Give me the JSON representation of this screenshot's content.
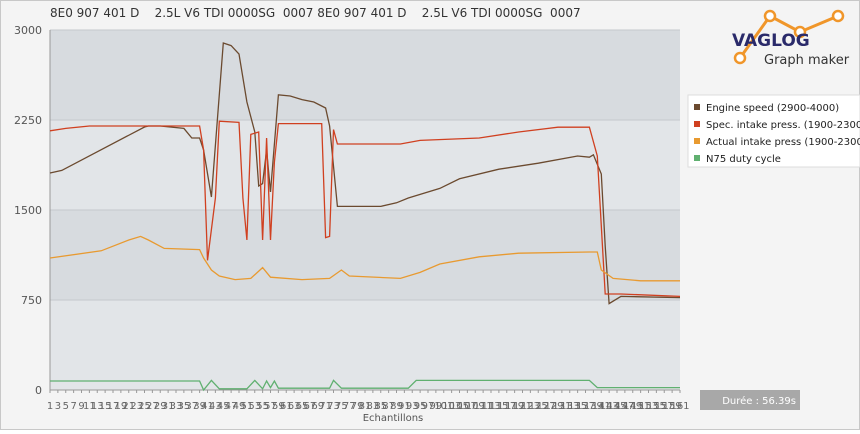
{
  "header": "8E0 907 401 D    2.5L V6 TDI 0000SG  0007 8E0 907 401 D    2.5L V6 TDI 0000SG  0007",
  "logo": {
    "title": "VAGLOG",
    "subtitle": "Graph maker"
  },
  "duration": "Durée : 56.39s",
  "chart_data": {
    "type": "line",
    "xlabel": "Echantillons",
    "xlim": [
      1,
      161
    ],
    "ylim": [
      0,
      3000
    ],
    "yticks": [
      0,
      750,
      1500,
      2250,
      3000
    ],
    "xticks": [
      1,
      3,
      5,
      7,
      9,
      11,
      13,
      15,
      17,
      19,
      21,
      23,
      25,
      27,
      29,
      31,
      33,
      35,
      37,
      39,
      41,
      43,
      45,
      47,
      49,
      51,
      53,
      55,
      57,
      59,
      61,
      63,
      65,
      67,
      69,
      71,
      73,
      75,
      77,
      79,
      81,
      83,
      85,
      87,
      89,
      91,
      93,
      95,
      97,
      99,
      101,
      103,
      105,
      107,
      109,
      111,
      113,
      115,
      117,
      119,
      121,
      123,
      125,
      127,
      129,
      131,
      133,
      135,
      137,
      139,
      141,
      143,
      145,
      147,
      149,
      151,
      153,
      155,
      157,
      159,
      161
    ],
    "legend": "right",
    "series": [
      {
        "name": "Engine speed (2900-4000)",
        "color": "#6b4a2f",
        "x": [
          1,
          4,
          25,
          26,
          29,
          35,
          37,
          39,
          40,
          42,
          45,
          47,
          49,
          51,
          53,
          54,
          55,
          56,
          57,
          59,
          62,
          65,
          68,
          71,
          72,
          74,
          85,
          89,
          92,
          100,
          105,
          115,
          125,
          135,
          138,
          139,
          141,
          142,
          143,
          146,
          161
        ],
        "values": [
          1808,
          1830,
          2192,
          2200,
          2200,
          2180,
          2100,
          2100,
          2000,
          1608,
          2892,
          2870,
          2800,
          2400,
          2150,
          1700,
          1720,
          2000,
          1650,
          2460,
          2450,
          2420,
          2400,
          2350,
          2200,
          1530,
          1530,
          1560,
          1600,
          1680,
          1760,
          1840,
          1890,
          1950,
          1940,
          1960,
          1800,
          1200,
          720,
          780,
          770
        ]
      },
      {
        "name": "Spec. intake press. (1900-2300",
        "color": "#d04020",
        "x": [
          1,
          5,
          11,
          39,
          40,
          41,
          43,
          44,
          49,
          50,
          51,
          52,
          54,
          55,
          56,
          57,
          58,
          59,
          70,
          71,
          72,
          73,
          74,
          90,
          95,
          110,
          120,
          130,
          138,
          140,
          142,
          146,
          161
        ],
        "values": [
          2160,
          2180,
          2200,
          2200,
          2000,
          1080,
          1600,
          2240,
          2230,
          1600,
          1250,
          2130,
          2150,
          1250,
          2100,
          1250,
          1900,
          2220,
          2220,
          1270,
          1280,
          2170,
          2050,
          2050,
          2080,
          2100,
          2150,
          2190,
          2190,
          1950,
          800,
          800,
          780
        ]
      },
      {
        "name": "Actual intake press (1900-2300",
        "color": "#e89a30",
        "x": [
          1,
          14,
          21,
          24,
          26,
          30,
          39,
          40,
          42,
          44,
          48,
          52,
          55,
          57,
          65,
          72,
          75,
          77,
          90,
          95,
          100,
          110,
          120,
          138,
          140,
          141,
          144,
          151,
          161
        ],
        "values": [
          1100,
          1160,
          1250,
          1280,
          1250,
          1180,
          1170,
          1100,
          1000,
          950,
          920,
          930,
          1020,
          940,
          920,
          930,
          1000,
          950,
          930,
          980,
          1050,
          1110,
          1140,
          1150,
          1150,
          1000,
          930,
          910,
          910
        ]
      },
      {
        "name": "N75 duty cycle",
        "color": "#60b070",
        "x": [
          1,
          39,
          40,
          42,
          44,
          51,
          53,
          55,
          56,
          57,
          58,
          59,
          72,
          73,
          75,
          92,
          94,
          138,
          140,
          161
        ],
        "values": [
          75,
          75,
          0,
          80,
          10,
          10,
          80,
          10,
          75,
          20,
          75,
          15,
          15,
          80,
          15,
          15,
          80,
          80,
          20,
          20
        ]
      }
    ]
  }
}
